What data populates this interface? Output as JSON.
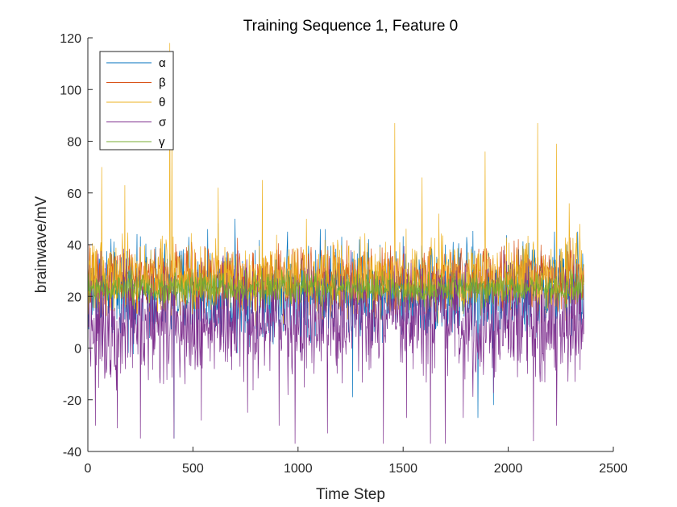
{
  "chart_data": {
    "type": "line",
    "title": "Training Sequence 1, Feature 0",
    "xlabel": "Time Step",
    "ylabel": "brainwave/mV",
    "xlim": [
      0,
      2500
    ],
    "ylim": [
      -40,
      120
    ],
    "xticks": [
      0,
      500,
      1000,
      1500,
      2000,
      2500
    ],
    "yticks": [
      -40,
      -20,
      0,
      20,
      40,
      60,
      80,
      100,
      120
    ],
    "n_points": 2360,
    "grid": false,
    "legend_position": "top-left",
    "series": [
      {
        "name": "α",
        "color": "#0072BD",
        "mean": 22,
        "spread": 9,
        "peaks": [
          [
            300,
            38
          ],
          [
            480,
            43
          ],
          [
            570,
            46
          ],
          [
            700,
            50
          ],
          [
            950,
            45
          ],
          [
            1105,
            46
          ],
          [
            1130,
            46
          ],
          [
            1700,
            40
          ],
          [
            2220,
            45
          ],
          [
            2330,
            45
          ],
          [
            410,
            -35
          ],
          [
            1855,
            -27
          ],
          [
            1930,
            -22
          ],
          [
            1260,
            -19
          ]
        ]
      },
      {
        "name": "β",
        "color": "#D95319",
        "mean": 27,
        "spread": 6,
        "peaks": [
          [
            20,
            36
          ],
          [
            150,
            36
          ],
          [
            420,
            34
          ],
          [
            600,
            35
          ],
          [
            900,
            38
          ],
          [
            1120,
            36
          ],
          [
            1300,
            35
          ],
          [
            1500,
            36
          ],
          [
            1800,
            34
          ],
          [
            2060,
            36
          ],
          [
            2300,
            38
          ]
        ]
      },
      {
        "name": "θ",
        "color": "#EDB120",
        "mean": 27,
        "spread": 7,
        "peaks": [
          [
            65,
            70
          ],
          [
            175,
            63
          ],
          [
            390,
            118
          ],
          [
            400,
            88
          ],
          [
            620,
            62
          ],
          [
            830,
            65
          ],
          [
            1040,
            50
          ],
          [
            1460,
            87
          ],
          [
            1590,
            66
          ],
          [
            1670,
            52
          ],
          [
            1890,
            76
          ],
          [
            2140,
            87
          ],
          [
            2230,
            79
          ],
          [
            2290,
            56
          ],
          [
            2340,
            48
          ]
        ]
      },
      {
        "name": "σ",
        "color": "#7E2F8E",
        "mean": 10,
        "spread": 11,
        "peaks": [
          [
            35,
            -30
          ],
          [
            140,
            -31
          ],
          [
            250,
            -35
          ],
          [
            410,
            -35
          ],
          [
            540,
            -28
          ],
          [
            760,
            -25
          ],
          [
            910,
            -30
          ],
          [
            985,
            -37
          ],
          [
            1140,
            -33
          ],
          [
            1405,
            -37
          ],
          [
            1515,
            -27
          ],
          [
            1630,
            -37
          ],
          [
            1700,
            -37
          ],
          [
            1785,
            -27
          ],
          [
            2120,
            -36
          ],
          [
            2230,
            -30
          ]
        ]
      },
      {
        "name": "γ",
        "color": "#77AC30",
        "mean": 23,
        "spread": 3,
        "peaks": [
          [
            210,
            30
          ],
          [
            640,
            29
          ],
          [
            1400,
            30
          ],
          [
            1900,
            29
          ],
          [
            2300,
            30
          ]
        ]
      }
    ]
  }
}
